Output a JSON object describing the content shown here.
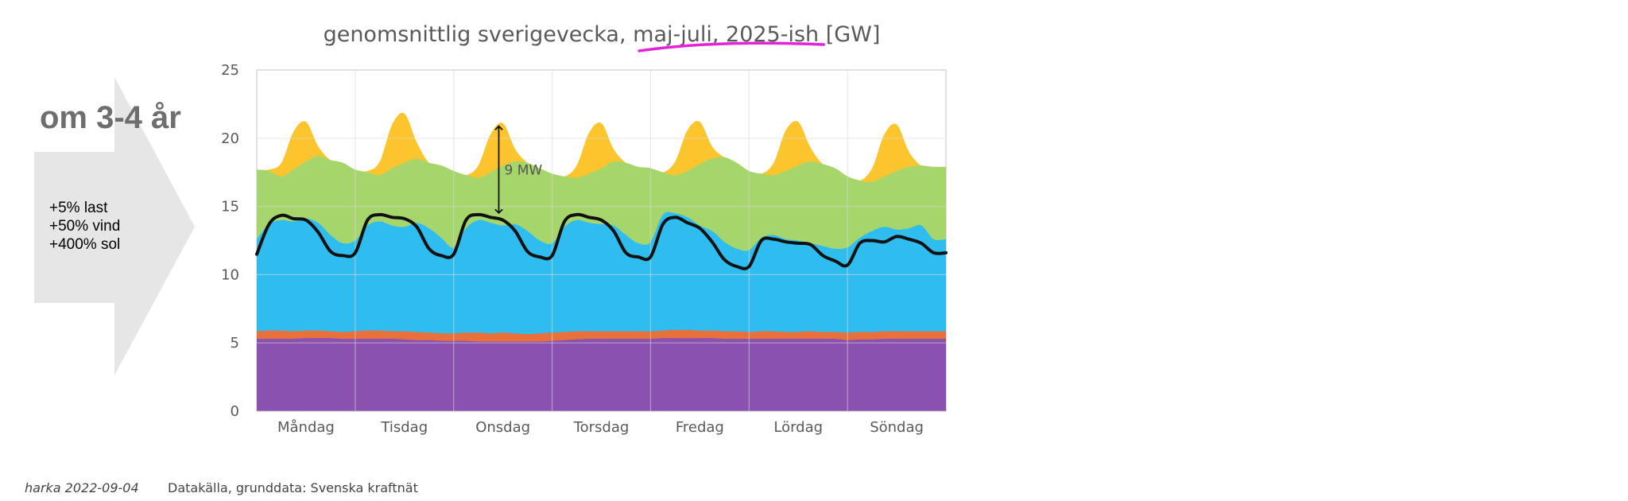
{
  "slide": {
    "headline": "om 3-4 år",
    "changes": [
      "+5% last",
      "+50% vind",
      "+400% sol"
    ],
    "footer_author": "harka 2022-09-04",
    "footer_source": "Datakälla, grunddata: Svenska kraftnät"
  },
  "colors": {
    "arrow": "#e6e6e6",
    "nuclear": "#8a51b1",
    "other": "#e8703a",
    "hydro": "#2fbdf0",
    "wind": "#a6d66b",
    "solar": "#fcc52d",
    "load_line": "#111111",
    "title_underline": "#e423d9",
    "grid": "#d9d9d9"
  },
  "chart_data": {
    "type": "area",
    "title": "genomsnittlig sverigevecka, maj-juli, 2025-ish [GW]",
    "title_underlined_part": "maj-juli, 2025-ish",
    "xlabel": "",
    "ylabel": "",
    "ylim": [
      0,
      25
    ],
    "yticks": [
      0,
      5,
      10,
      15,
      20,
      25
    ],
    "categories": [
      "Måndag",
      "Tisdag",
      "Onsdag",
      "Torsdag",
      "Fredag",
      "Lördag",
      "Söndag"
    ],
    "grid": true,
    "legend": "none",
    "points_per_day": 8,
    "x_hours": [
      0,
      3,
      6,
      9,
      12,
      15,
      18,
      21
    ],
    "stacked_series": [
      {
        "key": "nuclear",
        "color_key": "nuclear",
        "top": {
          "days": [
            [
              5.3,
              5.3,
              5.3,
              5.3,
              5.35,
              5.35,
              5.35,
              5.3
            ],
            [
              5.3,
              5.3,
              5.3,
              5.3,
              5.25,
              5.2,
              5.2,
              5.15
            ],
            [
              5.15,
              5.15,
              5.1,
              5.1,
              5.1,
              5.1,
              5.1,
              5.1
            ],
            [
              5.15,
              5.2,
              5.25,
              5.3,
              5.3,
              5.3,
              5.3,
              5.3
            ],
            [
              5.3,
              5.35,
              5.35,
              5.35,
              5.35,
              5.35,
              5.3,
              5.3
            ],
            [
              5.3,
              5.3,
              5.3,
              5.3,
              5.3,
              5.3,
              5.3,
              5.3
            ],
            [
              5.2,
              5.25,
              5.25,
              5.3,
              5.3,
              5.3,
              5.3,
              5.3
            ]
          ]
        }
      },
      {
        "key": "other",
        "color_key": "other",
        "top": {
          "days": [
            [
              5.85,
              5.9,
              5.9,
              5.85,
              5.9,
              5.9,
              5.85,
              5.8
            ],
            [
              5.85,
              5.9,
              5.9,
              5.85,
              5.85,
              5.8,
              5.75,
              5.7
            ],
            [
              5.7,
              5.75,
              5.75,
              5.7,
              5.75,
              5.7,
              5.65,
              5.7
            ],
            [
              5.75,
              5.8,
              5.85,
              5.85,
              5.85,
              5.85,
              5.85,
              5.85
            ],
            [
              5.85,
              5.9,
              5.95,
              5.95,
              5.9,
              5.9,
              5.85,
              5.85
            ],
            [
              5.8,
              5.85,
              5.85,
              5.8,
              5.8,
              5.85,
              5.8,
              5.8
            ],
            [
              5.75,
              5.8,
              5.8,
              5.85,
              5.85,
              5.85,
              5.85,
              5.85
            ]
          ]
        }
      },
      {
        "key": "hydro",
        "color_key": "hydro",
        "top": {
          "days": [
            [
              12.6,
              13.7,
              14.0,
              13.9,
              14.1,
              13.8,
              12.9,
              12.3
            ],
            [
              12.5,
              13.6,
              13.9,
              13.6,
              13.5,
              13.8,
              13.4,
              12.7
            ],
            [
              12.0,
              13.4,
              14.0,
              13.8,
              13.6,
              13.7,
              13.2,
              12.5
            ],
            [
              12.3,
              13.5,
              14.0,
              13.8,
              13.7,
              13.6,
              12.9,
              12.3
            ],
            [
              12.4,
              14.4,
              14.5,
              14.2,
              13.6,
              13.2,
              12.4,
              11.9
            ],
            [
              11.8,
              12.7,
              12.9,
              12.6,
              12.5,
              12.3,
              12.1,
              11.9
            ],
            [
              12.0,
              12.7,
              13.2,
              13.5,
              13.3,
              13.4,
              13.6,
              12.6
            ]
          ]
        }
      },
      {
        "key": "wind",
        "color_key": "wind",
        "top": {
          "days": [
            [
              17.7,
              17.6,
              17.2,
              17.7,
              18.3,
              18.7,
              18.4,
              18.2
            ],
            [
              17.7,
              17.5,
              17.3,
              17.8,
              18.2,
              18.5,
              18.2,
              18.0
            ],
            [
              17.6,
              17.3,
              17.1,
              17.5,
              18.0,
              18.3,
              18.2,
              17.8
            ],
            [
              17.4,
              17.2,
              17.1,
              17.4,
              17.8,
              18.3,
              18.2,
              17.9
            ],
            [
              17.8,
              17.5,
              17.3,
              17.6,
              18.1,
              18.5,
              18.6,
              18.2
            ],
            [
              17.6,
              17.4,
              17.3,
              17.6,
              18.0,
              18.3,
              18.1,
              17.8
            ],
            [
              17.2,
              16.9,
              16.8,
              17.2,
              17.6,
              17.9,
              18.0,
              17.9
            ]
          ]
        }
      },
      {
        "key": "solar",
        "color_key": "solar",
        "top": {
          "days": [
            [
              17.7,
              17.7,
              18.2,
              20.5,
              21.2,
              19.4,
              18.4,
              18.2
            ],
            [
              17.7,
              17.6,
              18.3,
              21.0,
              21.8,
              19.7,
              18.2,
              18.0
            ],
            [
              17.6,
              17.3,
              18.0,
              20.3,
              21.1,
              19.2,
              18.2,
              17.8
            ],
            [
              17.4,
              17.2,
              18.0,
              20.4,
              21.1,
              19.2,
              18.2,
              17.9
            ],
            [
              17.8,
              17.5,
              18.3,
              20.6,
              21.2,
              19.4,
              18.6,
              18.2
            ],
            [
              17.6,
              17.4,
              18.2,
              20.6,
              21.2,
              19.3,
              18.1,
              17.8
            ],
            [
              17.2,
              16.9,
              17.8,
              20.3,
              21.0,
              19.0,
              18.0,
              17.9
            ]
          ]
        }
      }
    ],
    "load_line": {
      "days": [
        [
          11.5,
          13.7,
          14.35,
          14.1,
          14.0,
          13.1,
          11.7,
          11.4
        ],
        [
          11.6,
          14.0,
          14.4,
          14.2,
          14.1,
          13.5,
          11.9,
          11.4
        ],
        [
          11.5,
          14.0,
          14.4,
          14.2,
          14.0,
          13.2,
          11.7,
          11.3
        ],
        [
          11.4,
          13.9,
          14.4,
          14.2,
          14.0,
          13.2,
          11.6,
          11.3
        ],
        [
          11.3,
          13.7,
          14.2,
          13.8,
          13.4,
          12.4,
          11.1,
          10.6
        ],
        [
          10.6,
          12.5,
          12.6,
          12.4,
          12.3,
          12.2,
          11.4,
          11.0
        ],
        [
          10.7,
          12.3,
          12.5,
          12.4,
          12.8,
          12.6,
          12.3,
          11.6
        ]
      ]
    },
    "annotations": [
      {
        "text": "9 MW",
        "x_day": 2,
        "x_hour": 11,
        "from_y": 14.4,
        "to_y": 21.0
      }
    ]
  }
}
